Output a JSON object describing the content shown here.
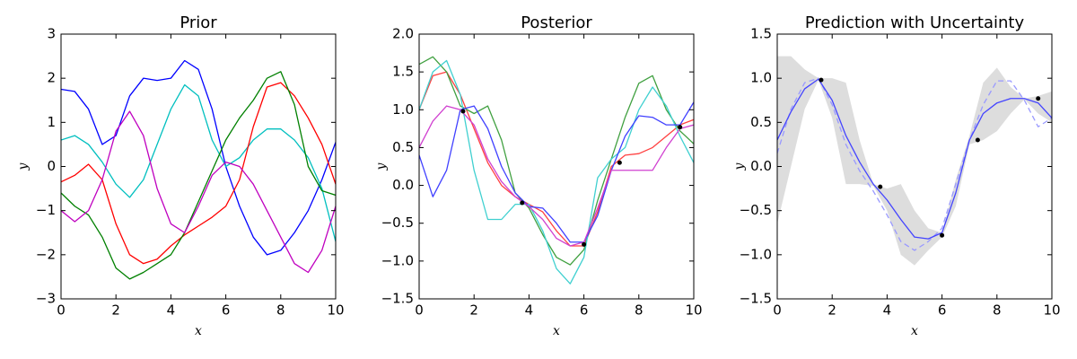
{
  "chart_data": [
    {
      "type": "line",
      "title": "Prior",
      "x_label": "x",
      "y_label": "y",
      "xlim": [
        0,
        10
      ],
      "xticks": [
        0,
        2,
        4,
        6,
        8,
        10
      ],
      "ylim": [
        -3,
        3
      ],
      "yticks": [
        {
          "value": -3,
          "label": "−3"
        },
        {
          "value": -2,
          "label": "−2"
        },
        {
          "value": -1,
          "label": "−1"
        },
        0,
        1,
        2,
        3
      ],
      "x": [
        0,
        0.5,
        1,
        1.5,
        2,
        2.5,
        3,
        3.5,
        4,
        4.5,
        5,
        5.5,
        6,
        6.5,
        7,
        7.5,
        8,
        8.5,
        9,
        9.5,
        10
      ],
      "series": [
        {
          "color": "#0000ff",
          "values": [
            1.75,
            1.7,
            1.3,
            0.5,
            0.7,
            1.6,
            2.0,
            1.95,
            2.0,
            2.4,
            2.2,
            1.3,
            0,
            -0.9,
            -1.6,
            -2.0,
            -1.9,
            -1.5,
            -1.0,
            -0.3,
            0.55
          ]
        },
        {
          "color": "#00bfbf",
          "values": [
            0.6,
            0.7,
            0.5,
            0.1,
            -0.4,
            -0.7,
            -0.3,
            0.5,
            1.3,
            1.85,
            1.6,
            0.6,
            0.0,
            0.2,
            0.6,
            0.85,
            0.85,
            0.6,
            0.2,
            -0.5,
            -1.7
          ]
        },
        {
          "color": "#ff0000",
          "values": [
            -0.35,
            -0.2,
            0.05,
            -0.3,
            -1.3,
            -2.0,
            -2.2,
            -2.1,
            -1.8,
            -1.55,
            -1.35,
            -1.15,
            -0.9,
            -0.3,
            0.9,
            1.8,
            1.9,
            1.6,
            1.1,
            0.5,
            -0.4
          ]
        },
        {
          "color": "#008000",
          "values": [
            -0.6,
            -0.9,
            -1.1,
            -1.6,
            -2.3,
            -2.55,
            -2.4,
            -2.2,
            -2.0,
            -1.5,
            -0.8,
            -0.1,
            0.6,
            1.1,
            1.5,
            2.0,
            2.15,
            1.4,
            0.0,
            -0.55,
            -0.65
          ]
        },
        {
          "color": "#bf00bf",
          "values": [
            -1.0,
            -1.25,
            -1.0,
            -0.3,
            0.8,
            1.25,
            0.7,
            -0.5,
            -1.3,
            -1.5,
            -0.9,
            -0.2,
            0.1,
            0.0,
            -0.4,
            -1.0,
            -1.6,
            -2.2,
            -2.4,
            -1.9,
            -0.9
          ]
        }
      ]
    },
    {
      "type": "line",
      "title": "Posterior",
      "x_label": "x",
      "y_label": "y",
      "xlim": [
        0,
        10
      ],
      "xticks": [
        0,
        2,
        4,
        6,
        8,
        10
      ],
      "ylim": [
        -1.5,
        2
      ],
      "yticks": [
        {
          "value": -1.5,
          "label": "−1.5"
        },
        {
          "value": -1,
          "label": "−1.0"
        },
        {
          "value": -0.5,
          "label": "−0.5"
        },
        {
          "value": 0,
          "label": "0.0"
        },
        0.5,
        {
          "value": 1,
          "label": "1.0"
        },
        1.5,
        {
          "value": 2,
          "label": "2.0"
        }
      ],
      "x": [
        0,
        0.5,
        1,
        1.5,
        2,
        2.5,
        3,
        3.5,
        4,
        4.5,
        5,
        5.5,
        6,
        6.5,
        7,
        7.5,
        8,
        8.5,
        9,
        9.5,
        10
      ],
      "series": [
        {
          "color": "#ff4040",
          "values": [
            1.0,
            1.45,
            1.5,
            1.2,
            0.75,
            0.3,
            0.0,
            -0.15,
            -0.25,
            -0.35,
            -0.6,
            -0.8,
            -0.8,
            -0.35,
            0.25,
            0.4,
            0.42,
            0.5,
            0.65,
            0.8,
            0.87
          ]
        },
        {
          "color": "#40a040",
          "values": [
            1.6,
            1.7,
            1.5,
            1.05,
            0.95,
            1.05,
            0.6,
            -0.1,
            -0.3,
            -0.65,
            -0.95,
            -1.05,
            -0.85,
            -0.2,
            0.35,
            0.9,
            1.35,
            1.45,
            1.0,
            0.72,
            0.55
          ]
        },
        {
          "color": "#40d0d0",
          "values": [
            1.0,
            1.5,
            1.65,
            1.2,
            0.2,
            -0.45,
            -0.45,
            -0.25,
            -0.25,
            -0.6,
            -1.1,
            -1.3,
            -0.95,
            0.1,
            0.35,
            0.5,
            1.0,
            1.3,
            1.05,
            0.65,
            0.3
          ]
        },
        {
          "color": "#4040ff",
          "values": [
            0.4,
            -0.15,
            0.2,
            1.0,
            1.05,
            0.75,
            0.25,
            -0.1,
            -0.28,
            -0.3,
            -0.5,
            -0.75,
            -0.75,
            -0.4,
            0.2,
            0.65,
            0.92,
            0.9,
            0.8,
            0.8,
            1.1
          ]
        },
        {
          "color": "#d040d0",
          "values": [
            0.5,
            0.85,
            1.05,
            1.0,
            0.8,
            0.35,
            0.05,
            -0.15,
            -0.28,
            -0.45,
            -0.7,
            -0.8,
            -0.75,
            -0.3,
            0.2,
            0.2,
            0.2,
            0.2,
            0.5,
            0.75,
            0.8
          ]
        }
      ],
      "points": {
        "x": [
          1.6,
          3.75,
          6.0,
          7.3,
          9.5
        ],
        "y": [
          0.98,
          -0.23,
          -0.78,
          0.3,
          0.77
        ]
      }
    },
    {
      "type": "line",
      "title": "Prediction with Uncertainty",
      "x_label": "x",
      "y_label": "y",
      "xlim": [
        0,
        10
      ],
      "xticks": [
        0,
        2,
        4,
        6,
        8,
        10
      ],
      "ylim": [
        -1.5,
        1.5
      ],
      "yticks": [
        {
          "value": -1.5,
          "label": "−1.5"
        },
        {
          "value": -1,
          "label": "−1.0"
        },
        {
          "value": -0.5,
          "label": "−0.5"
        },
        {
          "value": 0,
          "label": "0.0"
        },
        0.5,
        {
          "value": 1,
          "label": "1.0"
        },
        1.5
      ],
      "x": [
        0,
        0.5,
        1,
        1.5,
        2,
        2.5,
        3,
        3.5,
        4,
        4.5,
        5,
        5.5,
        6,
        6.5,
        7,
        7.5,
        8,
        8.5,
        9,
        9.5,
        10
      ],
      "band": {
        "color": "#dddddd",
        "upper": [
          1.25,
          1.25,
          1.1,
          1.0,
          1.0,
          0.95,
          0.3,
          -0.2,
          -0.25,
          -0.2,
          -0.5,
          -0.7,
          -0.75,
          -0.15,
          0.35,
          0.95,
          1.12,
          0.9,
          0.77,
          0.8,
          0.85
        ],
        "lower": [
          -0.65,
          0.0,
          0.65,
          0.98,
          0.55,
          -0.2,
          -0.2,
          -0.22,
          -0.5,
          -1.0,
          -1.12,
          -0.95,
          -0.8,
          -0.45,
          0.25,
          0.3,
          0.4,
          0.6,
          0.76,
          0.6,
          0.5
        ]
      },
      "series": [
        {
          "color": "#9999ff",
          "dashed": true,
          "values": [
            0.15,
            0.65,
            0.95,
            1.0,
            0.7,
            0.25,
            -0.05,
            -0.28,
            -0.55,
            -0.85,
            -0.95,
            -0.85,
            -0.7,
            -0.2,
            0.3,
            0.7,
            0.97,
            0.97,
            0.75,
            0.45,
            0.55
          ]
        },
        {
          "color": "#4444ff",
          "values": [
            0.3,
            0.62,
            0.88,
            0.99,
            0.75,
            0.35,
            0.05,
            -0.2,
            -0.38,
            -0.6,
            -0.8,
            -0.82,
            -0.75,
            -0.3,
            0.3,
            0.6,
            0.72,
            0.77,
            0.77,
            0.72,
            0.55
          ]
        }
      ],
      "points": {
        "x": [
          1.6,
          3.75,
          6.0,
          7.3,
          9.5
        ],
        "y": [
          0.98,
          -0.23,
          -0.78,
          0.3,
          0.77
        ]
      }
    }
  ]
}
